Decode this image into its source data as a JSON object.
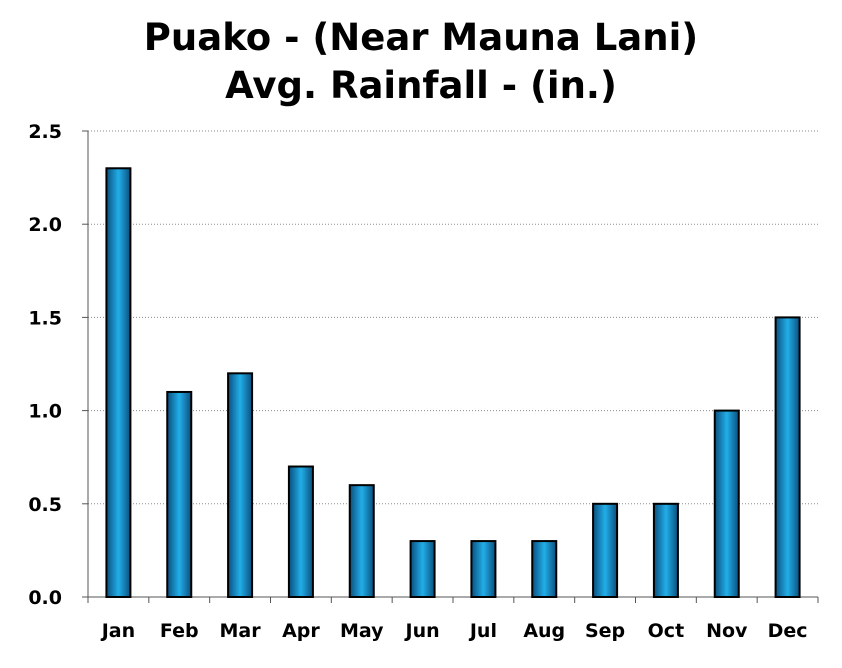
{
  "chart_data": {
    "type": "bar",
    "title_lines": [
      "Puako - (Near Mauna Lani)",
      "Avg. Rainfall - (in.)"
    ],
    "categories": [
      "Jan",
      "Feb",
      "Mar",
      "Apr",
      "May",
      "Jun",
      "Jul",
      "Aug",
      "Sep",
      "Oct",
      "Nov",
      "Dec"
    ],
    "values": [
      2.3,
      1.1,
      1.2,
      0.7,
      0.6,
      0.3,
      0.3,
      0.3,
      0.5,
      0.5,
      1.0,
      1.5
    ],
    "y_ticks": [
      "0.0",
      "0.5",
      "1.0",
      "1.5",
      "2.0",
      "2.5"
    ],
    "ylim": [
      0,
      2.5
    ],
    "grid": "horizontal-dotted",
    "legend": "none",
    "bar_color": "#1a9ad6"
  }
}
